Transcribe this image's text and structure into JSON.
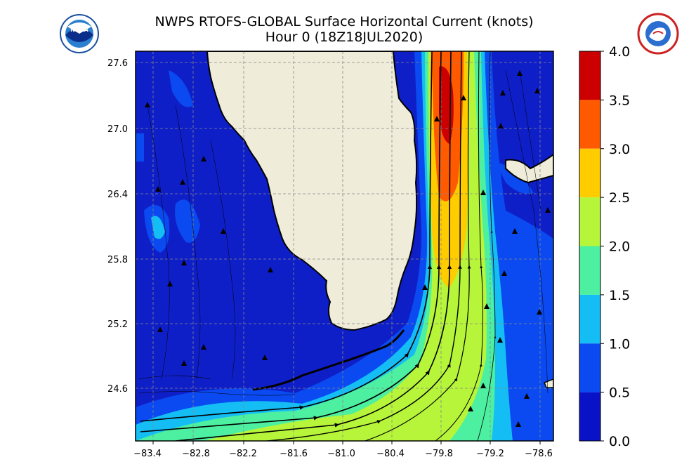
{
  "title": {
    "line1": "NWPS RTOFS-GLOBAL Surface Horizontal Current (knots)",
    "line2": "Hour 0 (18Z18JUL2020)"
  },
  "logos": {
    "left": "NOAA",
    "right": "NATIONAL WEATHER SERVICE"
  },
  "map": {
    "lon_ticks": [
      "−83.4",
      "−82.8",
      "−82.2",
      "−81.6",
      "−81.0",
      "−80.4",
      "−79.8",
      "−79.2",
      "−78.6"
    ],
    "lat_ticks": [
      "27.6",
      "27.0",
      "26.4",
      "25.8",
      "25.2",
      "24.6"
    ],
    "grid": "dashed",
    "colors": {
      "land": "#efecd9",
      "ocean_low": "#0f1fc8",
      "coast": "#000000"
    }
  },
  "colorbar": {
    "ticks": [
      "4.0",
      "3.5",
      "3.0",
      "2.5",
      "2.0",
      "1.5",
      "1.0",
      "0.5",
      "0.0"
    ],
    "bins": [
      {
        "from": 3.5,
        "to": 4.0,
        "color": "#cc0000"
      },
      {
        "from": 3.0,
        "to": 3.5,
        "color": "#ff5a00"
      },
      {
        "from": 2.5,
        "to": 3.0,
        "color": "#ffcc00"
      },
      {
        "from": 2.0,
        "to": 2.5,
        "color": "#b6f53a"
      },
      {
        "from": 1.5,
        "to": 2.0,
        "color": "#4cf0a0"
      },
      {
        "from": 1.0,
        "to": 1.5,
        "color": "#14bef5"
      },
      {
        "from": 0.5,
        "to": 1.0,
        "color": "#0a4af0"
      },
      {
        "from": 0.0,
        "to": 0.5,
        "color": "#0a12c8"
      }
    ]
  }
}
